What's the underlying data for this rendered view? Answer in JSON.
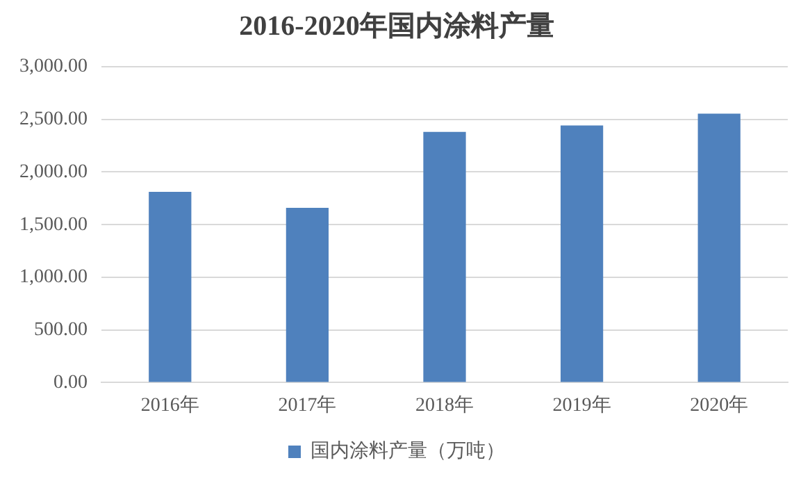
{
  "chart_data": {
    "type": "bar",
    "title": "2016-2020年国内涂料产量",
    "categories": [
      "2016年",
      "2017年",
      "2018年",
      "2019年",
      "2020年"
    ],
    "series": [
      {
        "name": "国内涂料产量（万吨）",
        "color": "#4f81bd",
        "values": [
          1812,
          1659,
          2381,
          2442,
          2555
        ]
      }
    ],
    "ylim": [
      0,
      3000
    ],
    "yticks": [
      {
        "value": 0,
        "label": "0.00"
      },
      {
        "value": 500,
        "label": "500.00"
      },
      {
        "value": 1000,
        "label": "1,000.00"
      },
      {
        "value": 1500,
        "label": "1,500.00"
      },
      {
        "value": 2000,
        "label": "2,000.00"
      },
      {
        "value": 2500,
        "label": "2,500.00"
      },
      {
        "value": 3000,
        "label": "3,000.00"
      }
    ],
    "grid": "y",
    "legend": "bottom"
  }
}
